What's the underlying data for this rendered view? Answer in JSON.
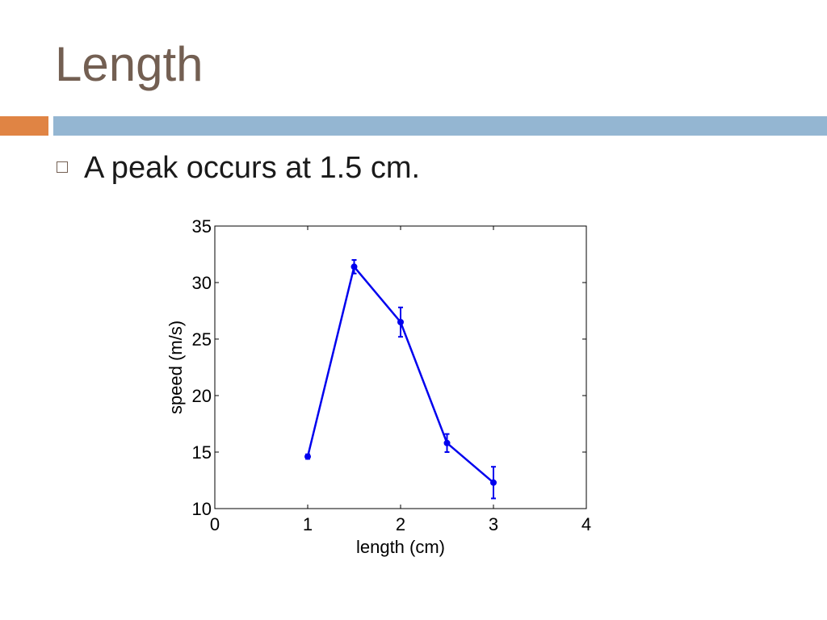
{
  "slide": {
    "title": "Length",
    "bullet": "A peak occurs at 1.5 cm."
  },
  "colors": {
    "title": "#735f52",
    "accent_orange": "#e08444",
    "accent_blue": "#94b6d2",
    "series": "#0000ee"
  },
  "chart_data": {
    "type": "line",
    "xlabel": "length (cm)",
    "ylabel": "speed (m/s)",
    "xlim": [
      0,
      4
    ],
    "ylim": [
      10,
      35
    ],
    "xticks": [
      0,
      1,
      2,
      3,
      4
    ],
    "yticks": [
      10,
      15,
      20,
      25,
      30,
      35
    ],
    "grid": false,
    "series": [
      {
        "x": [
          1,
          1.5,
          2,
          2.5,
          3
        ],
        "y": [
          14.6,
          31.4,
          26.5,
          15.8,
          12.3
        ],
        "error": [
          0.2,
          0.6,
          1.3,
          0.8,
          1.4
        ]
      }
    ]
  }
}
